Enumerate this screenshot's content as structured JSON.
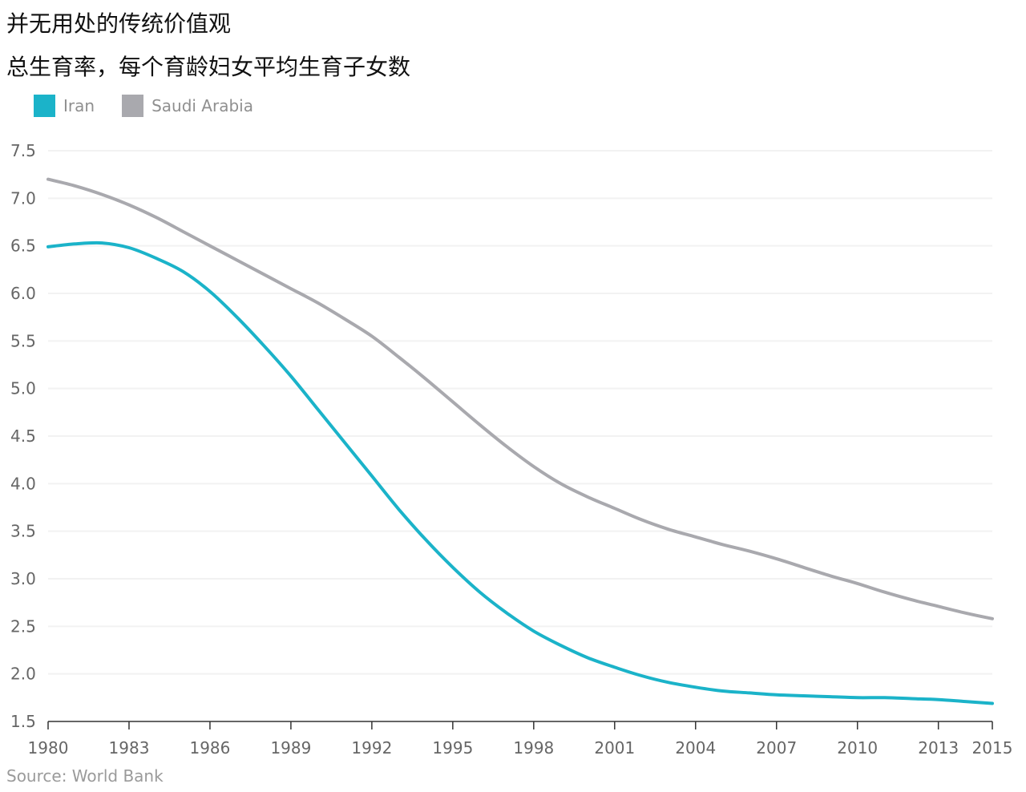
{
  "chart_data": {
    "type": "line",
    "title": "并无用处的传统价值观",
    "subtitle": "总生育率，每个育龄妇女平均生育子女数",
    "source": "Source: World Bank",
    "xlabel": "",
    "ylabel": "",
    "ylim": [
      1.5,
      7.5
    ],
    "xlim": [
      1980,
      2015
    ],
    "y_ticks": [
      "1.5",
      "2.0",
      "2.5",
      "3.0",
      "3.5",
      "4.0",
      "4.5",
      "5.0",
      "5.5",
      "6.0",
      "6.5",
      "7.0",
      "7.5"
    ],
    "x_ticks": [
      "1980",
      "1983",
      "1986",
      "1989",
      "1992",
      "1995",
      "1998",
      "2001",
      "2004",
      "2007",
      "2010",
      "2013",
      "2015"
    ],
    "grid": true,
    "legend_position": "top-left",
    "series": [
      {
        "name": "Iran",
        "color": "#1bb3c9",
        "x": [
          1980,
          1981,
          1982,
          1983,
          1984,
          1985,
          1986,
          1987,
          1988,
          1989,
          1990,
          1991,
          1992,
          1993,
          1994,
          1995,
          1996,
          1997,
          1998,
          1999,
          2000,
          2001,
          2002,
          2003,
          2004,
          2005,
          2006,
          2007,
          2008,
          2009,
          2010,
          2011,
          2012,
          2013,
          2014,
          2015
        ],
        "values": [
          6.49,
          6.52,
          6.53,
          6.48,
          6.37,
          6.23,
          6.02,
          5.75,
          5.45,
          5.13,
          4.78,
          4.43,
          4.08,
          3.73,
          3.41,
          3.12,
          2.86,
          2.64,
          2.45,
          2.3,
          2.17,
          2.07,
          1.98,
          1.91,
          1.86,
          1.82,
          1.8,
          1.78,
          1.77,
          1.76,
          1.75,
          1.75,
          1.74,
          1.73,
          1.71,
          1.69
        ]
      },
      {
        "name": "Saudi Arabia",
        "color": "#a9a9ae",
        "x": [
          1980,
          1981,
          1982,
          1983,
          1984,
          1985,
          1986,
          1987,
          1988,
          1989,
          1990,
          1991,
          1992,
          1993,
          1994,
          1995,
          1996,
          1997,
          1998,
          1999,
          2000,
          2001,
          2002,
          2003,
          2004,
          2005,
          2006,
          2007,
          2008,
          2009,
          2010,
          2011,
          2012,
          2013,
          2014,
          2015
        ],
        "values": [
          7.2,
          7.13,
          7.04,
          6.93,
          6.8,
          6.65,
          6.5,
          6.35,
          6.2,
          6.05,
          5.9,
          5.73,
          5.55,
          5.33,
          5.1,
          4.86,
          4.62,
          4.39,
          4.18,
          4.0,
          3.86,
          3.74,
          3.62,
          3.52,
          3.44,
          3.36,
          3.29,
          3.21,
          3.12,
          3.03,
          2.95,
          2.86,
          2.78,
          2.71,
          2.64,
          2.58
        ]
      }
    ]
  }
}
